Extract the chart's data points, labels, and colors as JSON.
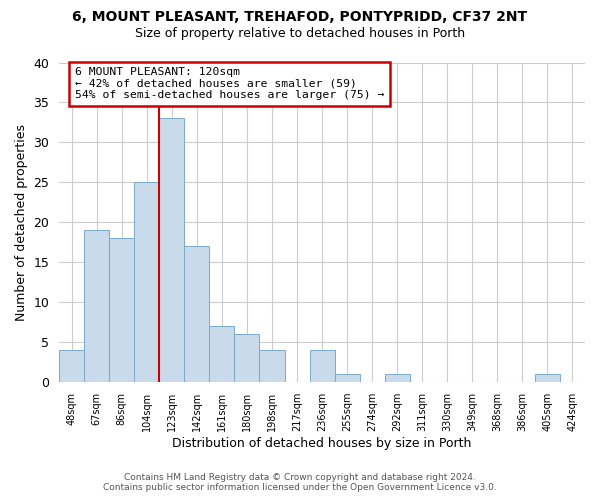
{
  "title": "6, MOUNT PLEASANT, TREHAFOD, PONTYPRIDD, CF37 2NT",
  "subtitle": "Size of property relative to detached houses in Porth",
  "xlabel": "Distribution of detached houses by size in Porth",
  "ylabel": "Number of detached properties",
  "bin_labels": [
    "48sqm",
    "67sqm",
    "86sqm",
    "104sqm",
    "123sqm",
    "142sqm",
    "161sqm",
    "180sqm",
    "198sqm",
    "217sqm",
    "236sqm",
    "255sqm",
    "274sqm",
    "292sqm",
    "311sqm",
    "330sqm",
    "349sqm",
    "368sqm",
    "386sqm",
    "405sqm",
    "424sqm"
  ],
  "bin_values": [
    4,
    19,
    18,
    25,
    33,
    17,
    7,
    6,
    4,
    0,
    4,
    1,
    0,
    1,
    0,
    0,
    0,
    0,
    0,
    1,
    0
  ],
  "bar_color": "#c9daea",
  "bar_edge_color": "#7aaac8",
  "vline_color": "#cc0000",
  "annotation_line1": "6 MOUNT PLEASANT: 120sqm",
  "annotation_line2": "← 42% of detached houses are smaller (59)",
  "annotation_line3": "54% of semi-detached houses are larger (75) →",
  "annotation_box_color": "#cc0000",
  "ylim": [
    0,
    40
  ],
  "yticks": [
    0,
    5,
    10,
    15,
    20,
    25,
    30,
    35,
    40
  ],
  "footer_line1": "Contains HM Land Registry data © Crown copyright and database right 2024.",
  "footer_line2": "Contains public sector information licensed under the Open Government Licence v3.0.",
  "bg_color": "#ffffff",
  "plot_bg_color": "#ffffff",
  "grid_color": "#cccccc"
}
